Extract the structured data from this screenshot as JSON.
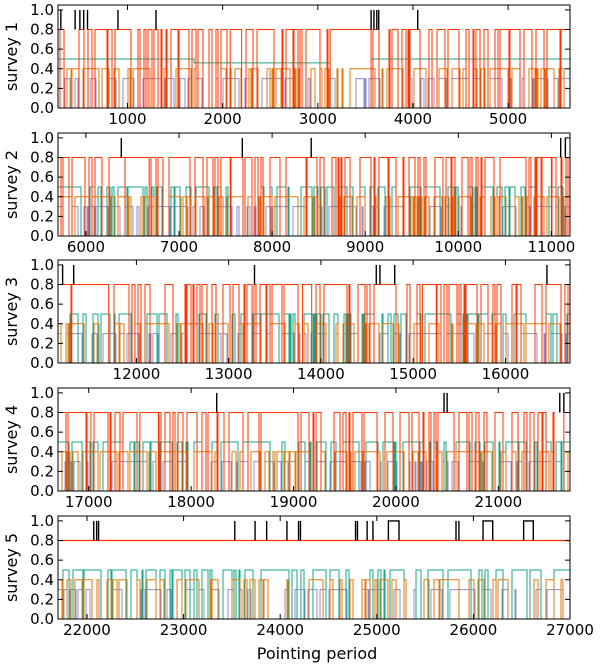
{
  "chart_data": {
    "type": "line",
    "xlabel": "Pointing period",
    "colors": {
      "black": "#000000",
      "red": "#ff3300",
      "teal": "#1aa589",
      "orange": "#e07a0e",
      "purple": "#8c8ccc"
    },
    "series_levels": {
      "black": 1.0,
      "red": 0.8,
      "teal": 0.5,
      "orange": 0.4,
      "purple": 0.3
    },
    "panels": [
      {
        "ylabel": "survey 1",
        "xlim": [
          270,
          5650
        ],
        "xticks": [
          1000,
          2000,
          3000,
          4000,
          5000
        ],
        "xtick_labels": [
          "1000",
          "2000",
          "3000",
          "4000",
          "5000"
        ],
        "ylim": [
          0,
          1.05
        ],
        "yticks": [
          "0.0",
          "0.2",
          "0.4",
          "0.6",
          "0.8",
          "1.0"
        ],
        "black_spikes": [
          300,
          450,
          500,
          540,
          580,
          900,
          1300,
          3560,
          3590,
          3620,
          3640,
          4050
        ],
        "red_gaps": [
          [
            2080,
            2200
          ],
          [
            3130,
            3560
          ]
        ],
        "teal_density": 0.04,
        "orange_density": 0.5,
        "purple_density": 0.5
      },
      {
        "ylabel": "survey 2",
        "xlim": [
          5700,
          11200
        ],
        "xticks": [
          6000,
          7000,
          8000,
          9000,
          10000,
          11000
        ],
        "xtick_labels": [
          "6000",
          "7000",
          "8000",
          "9000",
          "10000",
          "11000"
        ],
        "ylim": [
          0,
          1.05
        ],
        "yticks": [
          "0.0",
          "0.2",
          "0.4",
          "0.6",
          "0.8",
          "1.0"
        ],
        "black_spikes": [
          6380,
          7680,
          8420,
          11100,
          11150
        ],
        "red_gaps": [
          [
            6420,
            6680
          ],
          [
            7450,
            7550
          ],
          [
            10900,
            11000
          ]
        ],
        "teal_density": 0.5,
        "orange_density": 0.5,
        "purple_density": 0.55
      },
      {
        "ylabel": "survey 3",
        "xlim": [
          11150,
          16700
        ],
        "xticks": [
          12000,
          13000,
          14000,
          15000,
          16000
        ],
        "xtick_labels": [
          "12000",
          "13000",
          "14000",
          "15000",
          "16000"
        ],
        "ylim": [
          0,
          1.05
        ],
        "yticks": [
          "0.0",
          "0.2",
          "0.4",
          "0.6",
          "0.8",
          "1.0"
        ],
        "black_spikes": [
          11200,
          11320,
          13280,
          14600,
          14640,
          14800,
          16450
        ],
        "red_gaps": [
          [
            11300,
            11700
          ],
          [
            13800,
            13900
          ],
          [
            15100,
            15250
          ]
        ],
        "teal_density": 0.55,
        "orange_density": 0.6,
        "purple_density": 0.5
      },
      {
        "ylabel": "survey 4",
        "xlim": [
          16700,
          21700
        ],
        "xticks": [
          17000,
          18000,
          19000,
          20000,
          21000
        ],
        "xtick_labels": [
          "17000",
          "18000",
          "19000",
          "20000",
          "21000"
        ],
        "ylim": [
          0,
          1.05
        ],
        "yticks": [
          "0.0",
          "0.2",
          "0.4",
          "0.6",
          "0.8",
          "1.0"
        ],
        "black_spikes": [
          18250,
          20470,
          20500,
          21600,
          21640
        ],
        "red_gaps": [
          [
            17500,
            17680
          ],
          [
            21640,
            21700
          ]
        ],
        "teal_density": 0.55,
        "orange_density": 0.6,
        "purple_density": 0.55
      },
      {
        "ylabel": "survey 5",
        "xlim": [
          21700,
          27000
        ],
        "xticks": [
          22000,
          23000,
          24000,
          25000,
          26000,
          27000
        ],
        "xtick_labels": [
          "22000",
          "23000",
          "24000",
          "25000",
          "26000",
          "27000"
        ],
        "ylim": [
          0,
          1.05
        ],
        "yticks": [
          "0.0",
          "0.2",
          "0.4",
          "0.6",
          "0.8",
          "1.0"
        ],
        "black_spikes": [
          22070,
          22100,
          22120,
          23530,
          23740,
          23860,
          24070,
          24190,
          24210,
          24780,
          24800,
          24900,
          24960,
          25820,
          25850
        ],
        "black_boxes": [
          [
            25120,
            25230
          ],
          [
            26100,
            26200
          ],
          [
            26520,
            26620
          ]
        ],
        "red_constant": true,
        "teal_density": 0.6,
        "orange_density": 0.5,
        "purple_density": 0.45
      }
    ]
  }
}
